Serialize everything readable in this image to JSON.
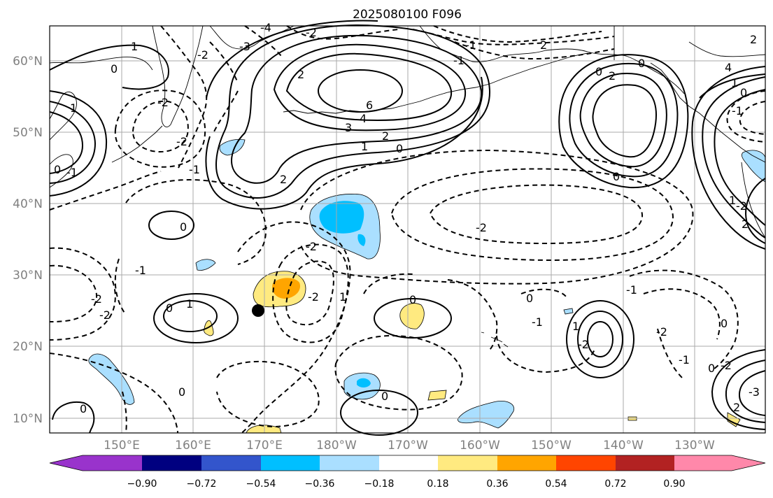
{
  "title": "2025080100 F096",
  "lat_labels": [
    "10°N",
    "20°N",
    "30°N",
    "40°N",
    "50°N",
    "60°N"
  ],
  "lon_labels": [
    "150°E",
    "160°E",
    "170°E",
    "180°W",
    "170°W",
    "160°W",
    "150°W",
    "140°W",
    "130°W"
  ],
  "colorbar": {
    "ticks": [
      "−0.90",
      "−0.72",
      "−0.54",
      "−0.36",
      "−0.18",
      "0.18",
      "0.36",
      "0.54",
      "0.72",
      "0.90"
    ],
    "colors": [
      "#9933cc",
      "#000080",
      "#3355cc",
      "#00bfff",
      "#aadfff",
      "#ffffff",
      "#ffea80",
      "#ffa500",
      "#ff4500",
      "#b22222",
      "#ff88aa"
    ]
  },
  "contour_labels": [
    "-4",
    "-2",
    "-3",
    "1",
    "0",
    "-2",
    "-2",
    "-1",
    "-2",
    "2",
    "6",
    "3",
    "4",
    "2",
    "1",
    "0",
    "2",
    "-1",
    "-2",
    "0",
    "-2",
    "-2",
    "0",
    "-2",
    "-2",
    "1",
    "0",
    "1",
    "-2",
    "0",
    "1",
    "0",
    "-1",
    "0",
    "-2",
    "0",
    "-1",
    "0",
    "-2",
    "1",
    "-1",
    "-2",
    "2",
    "0",
    "0",
    "-1",
    "-1",
    "0",
    "2",
    "2",
    "0",
    "4",
    "1",
    "0",
    "-1",
    "1",
    "-1",
    "2",
    "-3",
    "2",
    "0"
  ],
  "marker": "storm-position"
}
